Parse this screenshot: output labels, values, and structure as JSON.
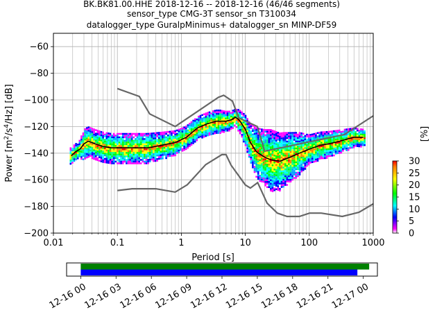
{
  "chart_data": [
    {
      "type": "heatmap",
      "title_lines": [
        "BK.BK81.00.HHE   2018-12-16 -- 2018-12-16  (46/46 segments)",
        "sensor_type CMG-3T sensor_sn T310034",
        "datalogger_type GuralpMinimus+ datalogger_sn MINP-DF59"
      ],
      "xlabel": "Period [s]",
      "ylabel": "Power [m²/s⁴/Hz] [dB]",
      "ylabel_parts": {
        "lead": "Power [m",
        "s4_sep": "/s",
        "hz_sep": "/Hz] [dB]",
        "sup2": "2",
        "sup4": "4"
      },
      "x_scale": "log",
      "xlim": [
        0.01,
        1000
      ],
      "ylim": [
        -200,
        -50
      ],
      "x_ticks": [
        {
          "value": 0.01,
          "label": "0.01"
        },
        {
          "value": 0.1,
          "label": "0.1"
        },
        {
          "value": 1,
          "label": "1"
        },
        {
          "value": 10,
          "label": "10"
        },
        {
          "value": 100,
          "label": "100"
        },
        {
          "value": 1000,
          "label": "1000"
        }
      ],
      "y_ticks": [
        {
          "value": -60,
          "label": "−60"
        },
        {
          "value": -80,
          "label": "−80"
        },
        {
          "value": -100,
          "label": "−100"
        },
        {
          "value": -120,
          "label": "−120"
        },
        {
          "value": -140,
          "label": "−140"
        },
        {
          "value": -160,
          "label": "−160"
        },
        {
          "value": -180,
          "label": "−180"
        },
        {
          "value": -200,
          "label": "−200"
        }
      ],
      "grid": true,
      "colorbar": {
        "label": "[%]",
        "range": [
          0,
          30
        ],
        "ticks": [
          {
            "value": 0,
            "label": "0"
          },
          {
            "value": 5,
            "label": "5"
          },
          {
            "value": 10,
            "label": "10"
          },
          {
            "value": 15,
            "label": "15"
          },
          {
            "value": 20,
            "label": "20"
          },
          {
            "value": 25,
            "label": "25"
          },
          {
            "value": 30,
            "label": "30"
          }
        ],
        "colors": [
          "#ffffff",
          "#ff00ff",
          "#0000ff",
          "#00ffff",
          "#00ff00",
          "#ffff00",
          "#ff0000"
        ]
      },
      "mean_curve": [
        [
          0.019,
          -142
        ],
        [
          0.022,
          -139
        ],
        [
          0.026,
          -137
        ],
        [
          0.03,
          -133
        ],
        [
          0.035,
          -131
        ],
        [
          0.045,
          -133
        ],
        [
          0.06,
          -135
        ],
        [
          0.08,
          -136
        ],
        [
          0.12,
          -136
        ],
        [
          0.2,
          -136
        ],
        [
          0.3,
          -136
        ],
        [
          0.5,
          -134
        ],
        [
          0.8,
          -132
        ],
        [
          1.2,
          -128
        ],
        [
          1.8,
          -121
        ],
        [
          2.5,
          -118
        ],
        [
          3.5,
          -116
        ],
        [
          5,
          -116
        ],
        [
          6,
          -115
        ],
        [
          7,
          -113
        ],
        [
          8,
          -115
        ],
        [
          10,
          -122
        ],
        [
          12,
          -132
        ],
        [
          15,
          -139
        ],
        [
          20,
          -143
        ],
        [
          25,
          -145
        ],
        [
          35,
          -146
        ],
        [
          50,
          -143
        ],
        [
          70,
          -140
        ],
        [
          100,
          -137
        ],
        [
          150,
          -134
        ],
        [
          200,
          -133
        ],
        [
          300,
          -131
        ],
        [
          500,
          -128
        ],
        [
          700,
          -128
        ]
      ],
      "spread_curve": [
        [
          0.019,
          2
        ],
        [
          0.025,
          2
        ],
        [
          0.03,
          4
        ],
        [
          0.04,
          4
        ],
        [
          0.1,
          4
        ],
        [
          0.3,
          4
        ],
        [
          1,
          3
        ],
        [
          2,
          3
        ],
        [
          4,
          3
        ],
        [
          7,
          2
        ],
        [
          10,
          4
        ],
        [
          15,
          7
        ],
        [
          25,
          9
        ],
        [
          40,
          8
        ],
        [
          70,
          6
        ],
        [
          100,
          4
        ],
        [
          300,
          3
        ],
        [
          700,
          2
        ]
      ],
      "nlnm_curve": [
        [
          0.1,
          -168.0
        ],
        [
          0.17,
          -166.7
        ],
        [
          0.4,
          -166.7
        ],
        [
          0.8,
          -169.2
        ],
        [
          1.24,
          -163.7
        ],
        [
          2.4,
          -148.6
        ],
        [
          4.3,
          -141.1
        ],
        [
          5.0,
          -141.1
        ],
        [
          6.0,
          -149.0
        ],
        [
          10.0,
          -163.8
        ],
        [
          12.0,
          -166.2
        ],
        [
          15.6,
          -162.1
        ],
        [
          21.9,
          -177.5
        ],
        [
          31.6,
          -185.0
        ],
        [
          45.0,
          -187.5
        ],
        [
          70.0,
          -187.5
        ],
        [
          101.0,
          -185.0
        ],
        [
          154.0,
          -185.0
        ],
        [
          328.0,
          -187.5
        ],
        [
          600.0,
          -184.4
        ],
        [
          1000.0,
          -178.0
        ]
      ],
      "nhnm_curve": [
        [
          0.1,
          -91.5
        ],
        [
          0.22,
          -97.4
        ],
        [
          0.32,
          -110.5
        ],
        [
          0.8,
          -120.0
        ],
        [
          3.8,
          -98.0
        ],
        [
          4.6,
          -96.5
        ],
        [
          6.3,
          -101.0
        ],
        [
          7.9,
          -113.5
        ],
        [
          15.4,
          -120.0
        ],
        [
          20.0,
          -138.5
        ],
        [
          354.8,
          -126.0
        ],
        [
          1000.0,
          -112.0
        ]
      ]
    },
    {
      "type": "timeline",
      "tick_labels": [
        "12-16 00",
        "12-16 03",
        "12-16 06",
        "12-16 09",
        "12-16 12",
        "12-16 15",
        "12-16 18",
        "12-16 21",
        "12-17 00"
      ],
      "tick_hours": [
        0,
        3,
        6,
        9,
        12,
        15,
        18,
        21,
        24
      ],
      "xlim_hours": [
        -1.2,
        25.2
      ],
      "bars": [
        {
          "color": "#008000",
          "start_hour": 0,
          "end_hour": 24.5
        },
        {
          "color": "#0000ff",
          "start_hour": 0,
          "end_hour": 23.5
        }
      ]
    }
  ]
}
